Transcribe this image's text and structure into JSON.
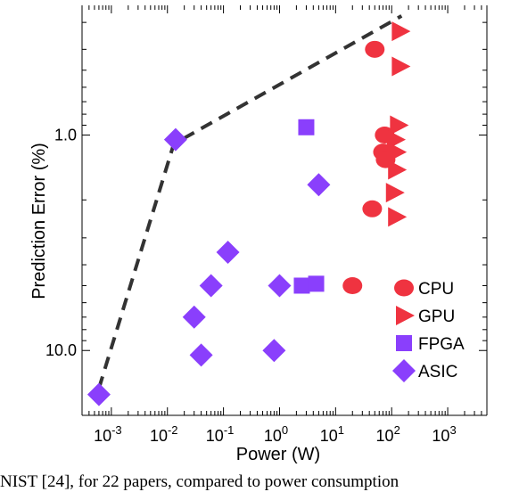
{
  "chart_data": {
    "type": "scatter",
    "xlabel": "Power (W)",
    "ylabel": "Prediction Error (%)",
    "x_scale": "log",
    "y_scale": "log",
    "y_inverted": true,
    "xlim": [
      0.0003,
      5000
    ],
    "ylim": [
      0.25,
      20
    ],
    "x_ticks": [
      {
        "value": 0.001,
        "base": "10",
        "exp": "-3"
      },
      {
        "value": 0.01,
        "base": "10",
        "exp": "-2"
      },
      {
        "value": 0.1,
        "base": "10",
        "exp": "-1"
      },
      {
        "value": 1,
        "base": "10",
        "exp": "0"
      },
      {
        "value": 10,
        "base": "10",
        "exp": "1"
      },
      {
        "value": 100,
        "base": "10",
        "exp": "2"
      },
      {
        "value": 1000,
        "base": "10",
        "exp": "3"
      }
    ],
    "y_ticks": [
      {
        "value": 1,
        "label": "1.0"
      },
      {
        "value": 10,
        "label": "10.0"
      }
    ],
    "grid": false,
    "legend_position": "bottom-right",
    "series": [
      {
        "name": "CPU",
        "marker": "circle",
        "color": "#ef3340",
        "points": [
          [
            50,
            0.4
          ],
          [
            75,
            1.0
          ],
          [
            70,
            1.2
          ],
          [
            78,
            1.3
          ],
          [
            45,
            2.2
          ],
          [
            20,
            5.0
          ]
        ]
      },
      {
        "name": "GPU",
        "marker": "triangle-right",
        "color": "#ef3340",
        "points": [
          [
            140,
            0.33
          ],
          [
            140,
            0.48
          ],
          [
            130,
            0.9
          ],
          [
            115,
            1.05
          ],
          [
            120,
            1.2
          ],
          [
            120,
            1.45
          ],
          [
            110,
            1.85
          ],
          [
            120,
            2.4
          ]
        ]
      },
      {
        "name": "FPGA",
        "marker": "square",
        "color": "#8a3ffc",
        "points": [
          [
            3,
            0.92
          ],
          [
            2.5,
            5.0
          ],
          [
            4.5,
            4.9
          ]
        ]
      },
      {
        "name": "ASIC",
        "marker": "diamond",
        "color": "#8a3ffc",
        "points": [
          [
            0.014,
            1.05
          ],
          [
            5,
            1.7
          ],
          [
            0.12,
            3.5
          ],
          [
            0.06,
            5.0
          ],
          [
            1,
            5.0
          ],
          [
            0.03,
            7.0
          ],
          [
            0.04,
            10.5
          ],
          [
            0.8,
            10.0
          ],
          [
            0.0006,
            16.0
          ]
        ]
      }
    ],
    "frontier_line": {
      "style": "dashed",
      "color": "#333333",
      "points": [
        [
          0.0006,
          15.0
        ],
        [
          0.013,
          1.1
        ],
        [
          150,
          0.28
        ]
      ]
    }
  },
  "caption": "NIST [24], for 22 papers, compared to power consumption"
}
